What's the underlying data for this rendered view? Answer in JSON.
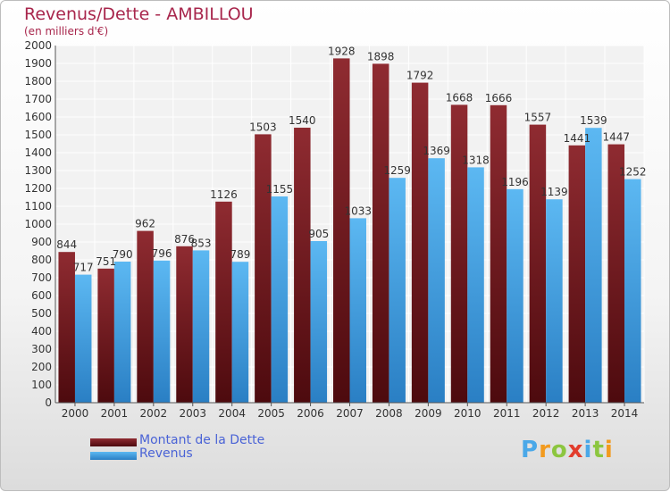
{
  "title": "Revenus/Dette - AMBILLOU",
  "subtitle": "(en milliers d'€)",
  "legend": {
    "debt_label": "Montant de la Dette",
    "revenue_label": "Revenus"
  },
  "logo": {
    "text": "Proxiti"
  },
  "colors": {
    "debt": "#7a1f25",
    "revenue": "#4aa8e8",
    "title": "#a8264c",
    "legend_text": "#4a63d6"
  },
  "chart_data": {
    "type": "bar",
    "title": "Revenus/Dette - AMBILLOU",
    "subtitle": "(en milliers d'€)",
    "categories": [
      "2000",
      "2001",
      "2002",
      "2003",
      "2004",
      "2005",
      "2006",
      "2007",
      "2008",
      "2009",
      "2010",
      "2011",
      "2012",
      "2013",
      "2014"
    ],
    "series": [
      {
        "name": "Montant de la Dette",
        "values": [
          844,
          751,
          962,
          876,
          1126,
          1503,
          1540,
          1928,
          1898,
          1792,
          1668,
          1666,
          1557,
          1441,
          1447
        ]
      },
      {
        "name": "Revenus",
        "values": [
          717,
          790,
          796,
          853,
          789,
          1155,
          905,
          1033,
          1259,
          1369,
          1318,
          1196,
          1139,
          1539,
          1252
        ]
      }
    ],
    "ylim": [
      0,
      2000
    ],
    "yticks": [
      0,
      100,
      200,
      300,
      400,
      500,
      600,
      700,
      800,
      900,
      1000,
      1100,
      1200,
      1300,
      1400,
      1500,
      1600,
      1700,
      1800,
      1900,
      2000
    ],
    "grid": true,
    "legend_position": "bottom-left"
  }
}
